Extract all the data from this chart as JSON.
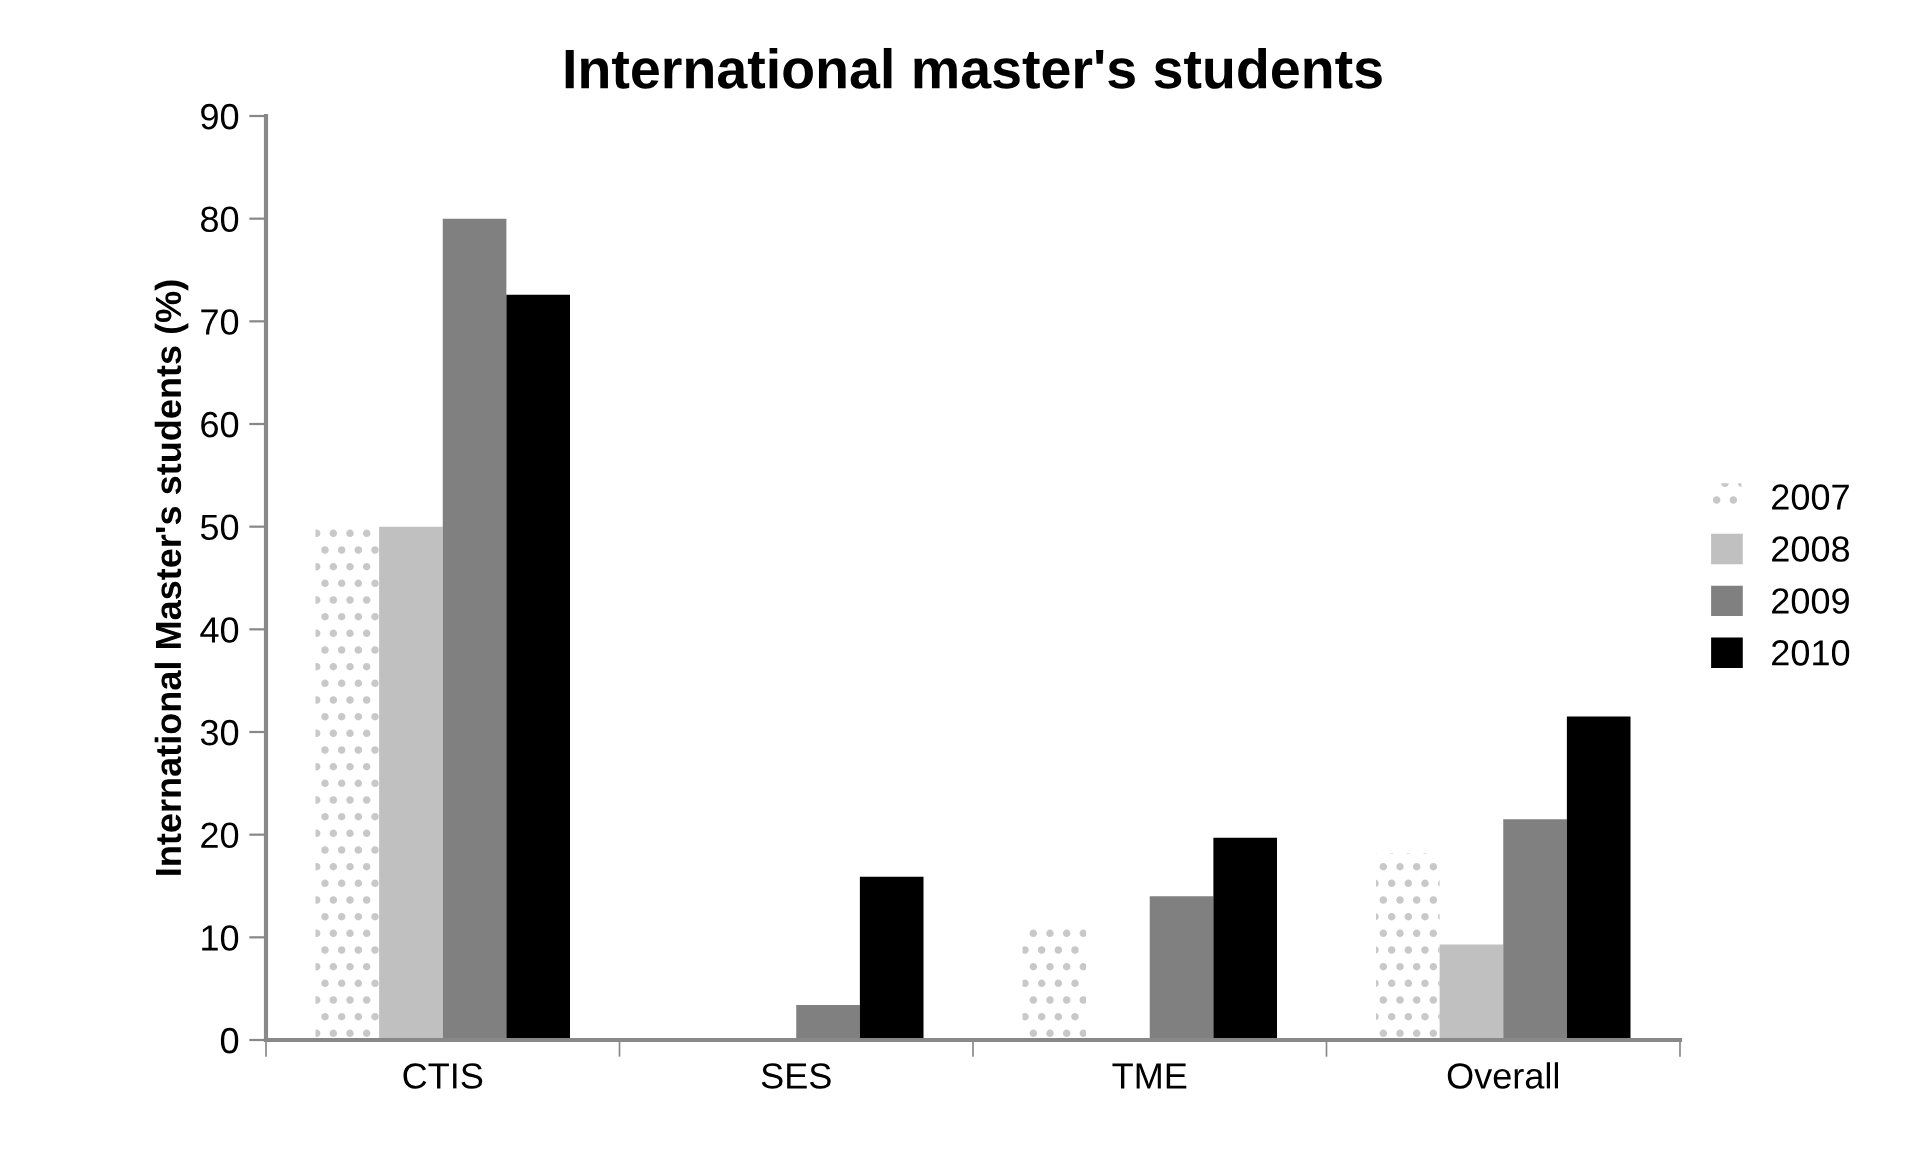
{
  "chart_data": {
    "type": "bar",
    "title": "International master's students",
    "ylabel": "International Master's students (%)",
    "categories": [
      "CTIS",
      "SES",
      "TME",
      "Overall"
    ],
    "series": [
      {
        "name": "2007",
        "color": "#c8c8c8",
        "values": [
          50,
          0,
          11.1,
          18.2
        ]
      },
      {
        "name": "2008",
        "color": "#c0c0c0",
        "values": [
          50,
          0,
          0,
          9.3
        ]
      },
      {
        "name": "2009",
        "color": "#808080",
        "values": [
          80,
          3.4,
          14.0,
          21.5
        ]
      },
      {
        "name": "2010",
        "color": "#000000",
        "values": [
          72.6,
          15.9,
          19.7,
          31.5
        ]
      }
    ],
    "ylim": [
      0,
      90
    ],
    "yticks": [
      0,
      10,
      20,
      30,
      40,
      50,
      60,
      70,
      80,
      90
    ],
    "grid": false,
    "legend": "right"
  }
}
